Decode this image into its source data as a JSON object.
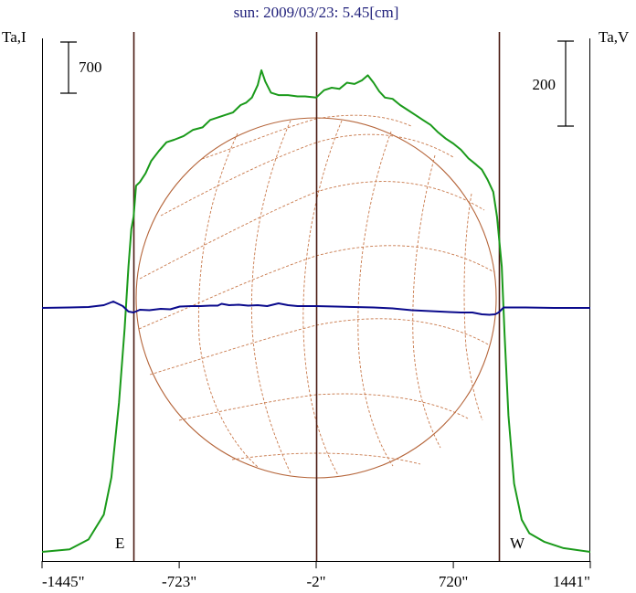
{
  "chart_data": {
    "type": "line",
    "title": "sun: 2009/03/23: 5.45[cm]",
    "left_axis_label": "Ta,I",
    "right_axis_label": "Ta,V",
    "left_scale_bar": "700",
    "right_scale_bar": "200",
    "x_ticks": [
      {
        "value": -1445,
        "label": "-1445\""
      },
      {
        "value": -723,
        "label": "-723\""
      },
      {
        "value": -2,
        "label": "-2\""
      },
      {
        "value": 720,
        "label": "720\""
      },
      {
        "value": 1441,
        "label": "1441\""
      }
    ],
    "xlim": [
      -1445,
      1441
    ],
    "limb_labels": {
      "east": "E",
      "west": "W"
    },
    "vertical_lines": [
      -963,
      -2,
      958
    ],
    "grid": false,
    "colors": {
      "title": "#1f1f7a",
      "stokes_i": "#1a9a1a",
      "stokes_v": "#0a0a8c",
      "disk": "#b5653a",
      "vline": "#4a1a12",
      "frame": "#000000"
    },
    "series": [
      {
        "name": "Ta,I",
        "ylim": [
          0,
          3990
        ],
        "x": [
          -1445,
          -1300,
          -1200,
          -1120,
          -1080,
          -1040,
          -1010,
          -990,
          -975,
          -963,
          -950,
          -930,
          -900,
          -870,
          -830,
          -790,
          -750,
          -700,
          -650,
          -600,
          -560,
          -520,
          -480,
          -440,
          -400,
          -370,
          -340,
          -310,
          -290,
          -270,
          -240,
          -200,
          -150,
          -100,
          -60,
          -2,
          40,
          80,
          120,
          160,
          200,
          240,
          270,
          300,
          330,
          360,
          400,
          440,
          480,
          520,
          560,
          600,
          640,
          680,
          720,
          760,
          800,
          840,
          870,
          900,
          930,
          950,
          975,
          990,
          1010,
          1040,
          1080,
          1120,
          1200,
          1300,
          1441
        ],
        "values": [
          0,
          20,
          100,
          300,
          600,
          1200,
          1800,
          2300,
          2600,
          2700,
          2950,
          2980,
          3050,
          3150,
          3230,
          3300,
          3320,
          3350,
          3400,
          3420,
          3480,
          3500,
          3520,
          3540,
          3600,
          3620,
          3660,
          3760,
          3880,
          3790,
          3700,
          3680,
          3680,
          3670,
          3670,
          3660,
          3720,
          3740,
          3730,
          3780,
          3770,
          3800,
          3840,
          3780,
          3710,
          3660,
          3650,
          3600,
          3560,
          3520,
          3480,
          3440,
          3380,
          3330,
          3290,
          3240,
          3170,
          3120,
          3080,
          3000,
          2900,
          2700,
          2300,
          1750,
          1100,
          550,
          260,
          150,
          80,
          30,
          0
        ]
      },
      {
        "name": "Ta,V",
        "ylim": [
          -1000,
          1000
        ],
        "x": [
          -1445,
          -1300,
          -1200,
          -1120,
          -1070,
          -1020,
          -990,
          -963,
          -930,
          -880,
          -820,
          -770,
          -720,
          -660,
          -610,
          -560,
          -520,
          -500,
          -460,
          -410,
          -360,
          -310,
          -260,
          -200,
          -150,
          -100,
          -2,
          100,
          200,
          300,
          400,
          500,
          600,
          700,
          760,
          820,
          870,
          910,
          940,
          958,
          985,
          1020,
          1100,
          1250,
          1441
        ],
        "values": [
          0,
          5,
          10,
          30,
          70,
          20,
          -40,
          -50,
          -20,
          -25,
          -10,
          -15,
          15,
          20,
          20,
          25,
          25,
          45,
          30,
          35,
          25,
          30,
          20,
          50,
          30,
          20,
          20,
          15,
          10,
          5,
          -5,
          -25,
          -35,
          -45,
          -50,
          -50,
          -70,
          -75,
          -70,
          -50,
          5,
          5,
          5,
          0,
          0
        ]
      }
    ]
  }
}
